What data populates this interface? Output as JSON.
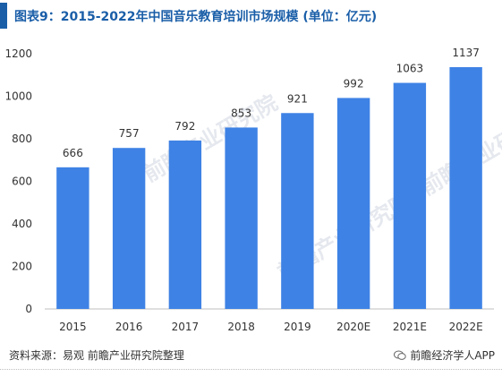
{
  "colors": {
    "bar": "#3e82e5",
    "title": "#1a5ea8",
    "axis_text": "#333333",
    "grid": "#d9d9d9"
  },
  "source_note": "资料来源：易观 前瞻产业研究院整理",
  "wechat_label": "前瞻经济学人APP",
  "watermark_text": "前瞻产业研究院",
  "chart_data": {
    "type": "bar",
    "title": "图表9：2015-2022年中国音乐教育培训市场规模 (单位：亿元)",
    "xlabel": "",
    "ylabel": "",
    "categories": [
      "2015",
      "2016",
      "2017",
      "2018",
      "2019",
      "2020E",
      "2021E",
      "2022E"
    ],
    "values": [
      666,
      757,
      792,
      853,
      921,
      992,
      1063,
      1137
    ],
    "ylim": [
      0,
      1200
    ],
    "yticks": [
      0,
      200,
      400,
      600,
      800,
      1000,
      1200
    ],
    "grid": false,
    "legend": "none"
  }
}
